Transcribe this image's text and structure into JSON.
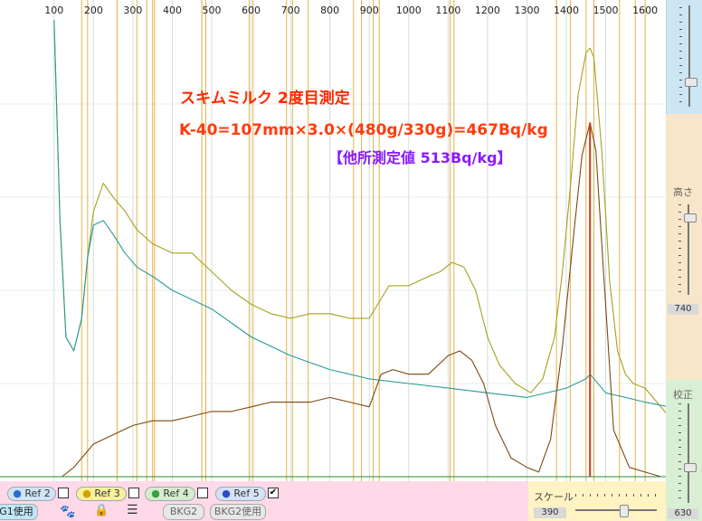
{
  "chart_data": {
    "type": "line",
    "x_ticks": [
      100,
      200,
      300,
      400,
      500,
      600,
      700,
      800,
      900,
      1000,
      1100,
      1200,
      1300,
      1400,
      1500,
      1600
    ],
    "ylim": [
      0,
      1
    ],
    "marker_lines": [
      170,
      185,
      260,
      310,
      335,
      350,
      355,
      475,
      485,
      595,
      605,
      690,
      705,
      745,
      860,
      880,
      910,
      925,
      1105,
      1115,
      1375,
      1410,
      1450,
      1470,
      1535,
      1575,
      1600
    ],
    "red_marker": 1460,
    "series": [
      {
        "color": "#a6a020",
        "x": [
          100,
          115,
          130,
          150,
          170,
          185,
          200,
          225,
          250,
          280,
          310,
          350,
          400,
          450,
          500,
          550,
          600,
          650,
          700,
          750,
          800,
          850,
          900,
          950,
          1000,
          1050,
          1080,
          1110,
          1140,
          1170,
          1200,
          1230,
          1270,
          1310,
          1340,
          1370,
          1390,
          1410,
          1430,
          1450,
          1460,
          1470,
          1490,
          1510,
          1530,
          1550,
          1570,
          1600,
          1630,
          1660
        ],
        "y": [
          0.98,
          0.55,
          0.3,
          0.27,
          0.34,
          0.47,
          0.57,
          0.63,
          0.6,
          0.57,
          0.53,
          0.5,
          0.48,
          0.48,
          0.44,
          0.4,
          0.37,
          0.35,
          0.34,
          0.35,
          0.35,
          0.34,
          0.34,
          0.41,
          0.41,
          0.43,
          0.44,
          0.46,
          0.45,
          0.4,
          0.3,
          0.24,
          0.2,
          0.18,
          0.21,
          0.3,
          0.44,
          0.62,
          0.82,
          0.91,
          0.92,
          0.9,
          0.7,
          0.42,
          0.27,
          0.22,
          0.2,
          0.19,
          0.16,
          0.13
        ]
      },
      {
        "color": "#2a9a99",
        "x": [
          100,
          115,
          130,
          150,
          170,
          185,
          200,
          225,
          250,
          280,
          310,
          350,
          400,
          450,
          500,
          550,
          600,
          700,
          800,
          900,
          1000,
          1100,
          1200,
          1300,
          1400,
          1450,
          1460,
          1500,
          1550,
          1600,
          1660
        ],
        "y": [
          0.98,
          0.55,
          0.3,
          0.27,
          0.34,
          0.47,
          0.54,
          0.55,
          0.52,
          0.48,
          0.45,
          0.43,
          0.4,
          0.38,
          0.36,
          0.33,
          0.3,
          0.26,
          0.23,
          0.21,
          0.2,
          0.19,
          0.18,
          0.17,
          0.19,
          0.21,
          0.22,
          0.18,
          0.17,
          0.16,
          0.15
        ]
      },
      {
        "color": "#7a4a10",
        "x": [
          120,
          150,
          200,
          250,
          300,
          350,
          400,
          450,
          500,
          550,
          600,
          650,
          700,
          750,
          800,
          850,
          900,
          930,
          960,
          1000,
          1050,
          1100,
          1130,
          1160,
          1190,
          1220,
          1260,
          1300,
          1330,
          1360,
          1390,
          1420,
          1440,
          1460,
          1475,
          1490,
          1520,
          1560,
          1600,
          1640
        ],
        "y": [
          0.0,
          0.02,
          0.07,
          0.09,
          0.11,
          0.12,
          0.12,
          0.13,
          0.14,
          0.14,
          0.15,
          0.16,
          0.16,
          0.16,
          0.17,
          0.16,
          0.15,
          0.22,
          0.23,
          0.22,
          0.22,
          0.26,
          0.27,
          0.25,
          0.2,
          0.11,
          0.04,
          0.02,
          0.01,
          0.08,
          0.28,
          0.53,
          0.69,
          0.76,
          0.7,
          0.5,
          0.1,
          0.02,
          0.01,
          0.0
        ]
      },
      {
        "color": "#c83a10",
        "x": [
          1460,
          1460
        ],
        "y": [
          0.0,
          0.76
        ]
      }
    ]
  },
  "annotations": {
    "line1": "スキムミルク 2度目測定",
    "line2": "K-40=107mm×3.0×(480g/330g)=467Bq/kg",
    "line3": "【他所測定値 513Bq/kg】"
  },
  "panel": {
    "height_label": "高さ",
    "height_value": "740",
    "calib_label": "校正",
    "calib_value": "630"
  },
  "bottom": {
    "refs": [
      {
        "label": "Ref 2",
        "checked": false
      },
      {
        "label": "Ref 3",
        "checked": false
      },
      {
        "label": "Ref 4",
        "checked": false
      },
      {
        "label": "Ref 5",
        "checked": true
      }
    ],
    "g1": "G1使用",
    "bkg2": "BKG2",
    "bkg2_use": "BKG2使用",
    "scale_label": "スケール",
    "scale_value": "390"
  },
  "colors": {
    "grid": "#cfe0da",
    "marker": "#e3b24a",
    "red_marker": "#e03c1c",
    "axis_text": "#222222"
  }
}
